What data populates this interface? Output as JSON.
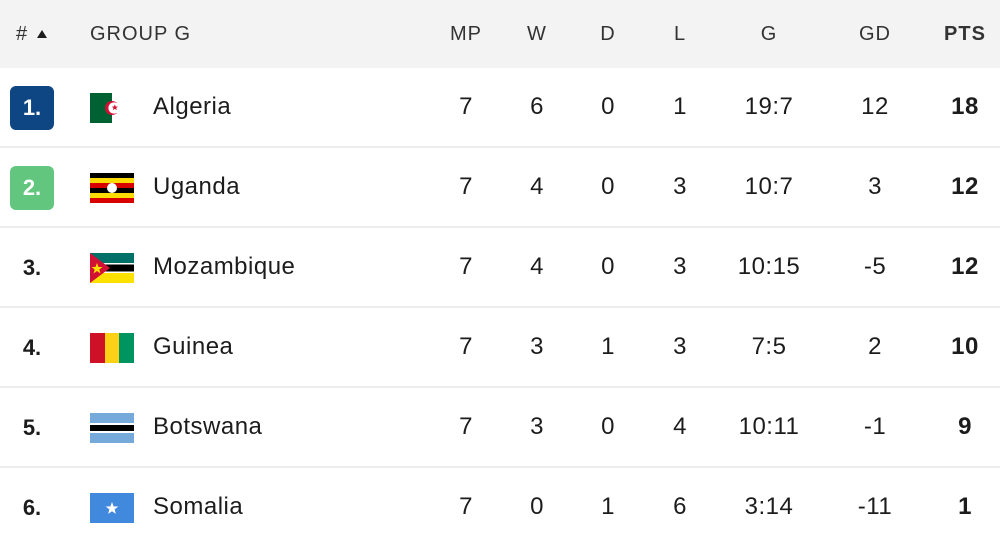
{
  "table": {
    "headers": [
      "#",
      "GROUP G",
      "MP",
      "W",
      "D",
      "L",
      "G",
      "GD",
      "PTS"
    ],
    "rows": [
      [
        "1.",
        "Algeria",
        "7",
        "6",
        "0",
        "1",
        "19:7",
        "12",
        "18"
      ],
      [
        "2.",
        "Uganda",
        "7",
        "4",
        "0",
        "3",
        "10:7",
        "3",
        "12"
      ],
      [
        "3.",
        "Mozambique",
        "7",
        "4",
        "0",
        "3",
        "10:15",
        "-5",
        "12"
      ],
      [
        "4.",
        "Guinea",
        "7",
        "3",
        "1",
        "3",
        "7:5",
        "2",
        "10"
      ],
      [
        "5.",
        "Botswana",
        "7",
        "3",
        "0",
        "4",
        "10:11",
        "-1",
        "9"
      ],
      [
        "6.",
        "Somalia",
        "7",
        "0",
        "1",
        "6",
        "3:14",
        "-11",
        "1"
      ]
    ]
  }
}
